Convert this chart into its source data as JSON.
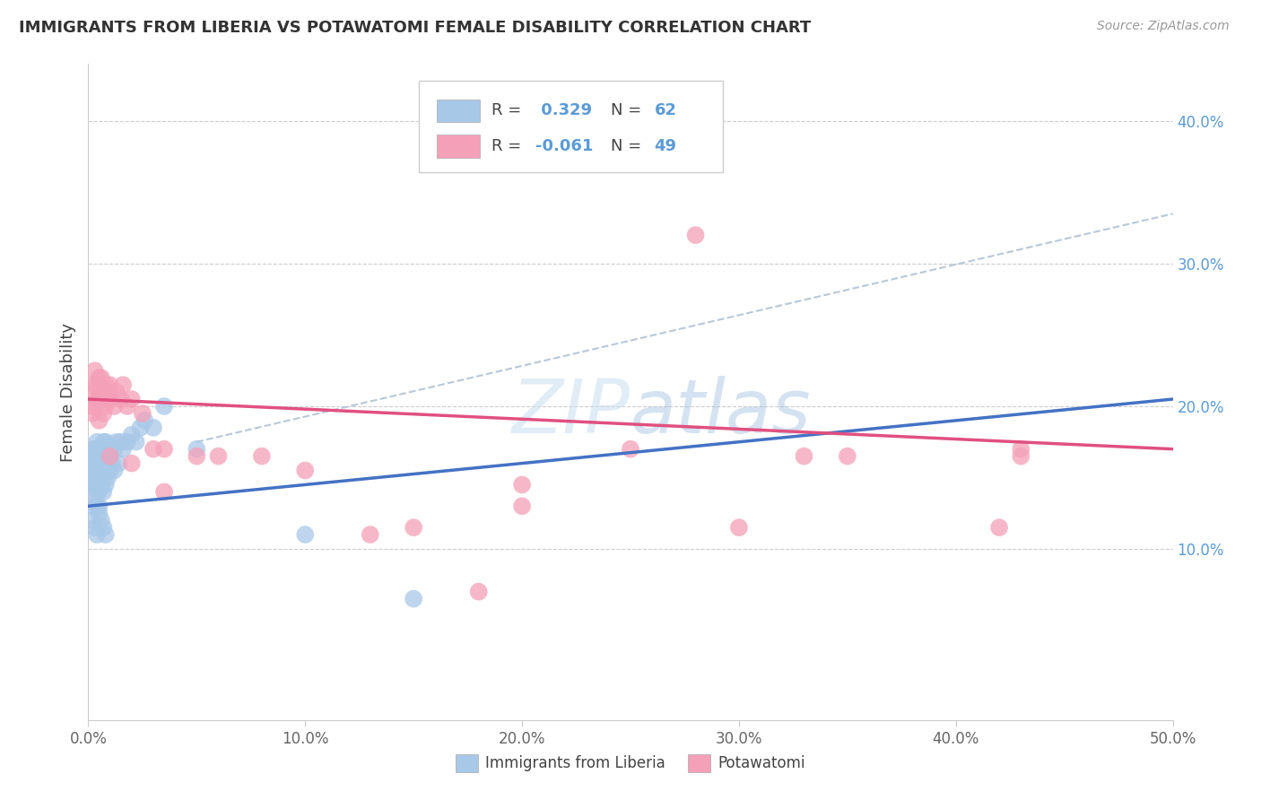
{
  "title": "IMMIGRANTS FROM LIBERIA VS POTAWATOMI FEMALE DISABILITY CORRELATION CHART",
  "source": "Source: ZipAtlas.com",
  "ylabel": "Female Disability",
  "xlim": [
    0.0,
    0.5
  ],
  "ylim": [
    -0.02,
    0.44
  ],
  "yticks": [
    0.1,
    0.2,
    0.3,
    0.4
  ],
  "ytick_labels": [
    "10.0%",
    "20.0%",
    "30.0%",
    "40.0%"
  ],
  "xticks": [
    0.0,
    0.1,
    0.2,
    0.3,
    0.4,
    0.5
  ],
  "xtick_labels": [
    "0.0%",
    "10.0%",
    "20.0%",
    "30.0%",
    "40.0%",
    "50.0%"
  ],
  "blue_R": 0.329,
  "blue_N": 62,
  "pink_R": -0.061,
  "pink_N": 49,
  "blue_color": "#a8c8e8",
  "pink_color": "#f4a0b8",
  "blue_line_color": "#4472c4",
  "pink_line_color": "#e05080",
  "trend_line_color": "#b8c8d8",
  "blue_points_x": [
    0.001,
    0.001,
    0.001,
    0.002,
    0.002,
    0.002,
    0.002,
    0.002,
    0.003,
    0.003,
    0.003,
    0.003,
    0.003,
    0.003,
    0.004,
    0.004,
    0.004,
    0.004,
    0.004,
    0.004,
    0.005,
    0.005,
    0.005,
    0.005,
    0.005,
    0.006,
    0.006,
    0.006,
    0.007,
    0.007,
    0.007,
    0.008,
    0.008,
    0.008,
    0.009,
    0.009,
    0.01,
    0.01,
    0.011,
    0.012,
    0.012,
    0.013,
    0.014,
    0.015,
    0.016,
    0.018,
    0.02,
    0.022,
    0.024,
    0.026,
    0.03,
    0.035,
    0.002,
    0.003,
    0.004,
    0.005,
    0.006,
    0.007,
    0.008,
    0.05,
    0.1,
    0.15
  ],
  "blue_points_y": [
    0.145,
    0.155,
    0.16,
    0.13,
    0.15,
    0.155,
    0.165,
    0.17,
    0.135,
    0.145,
    0.15,
    0.155,
    0.16,
    0.17,
    0.13,
    0.14,
    0.145,
    0.155,
    0.165,
    0.175,
    0.13,
    0.14,
    0.15,
    0.16,
    0.17,
    0.145,
    0.155,
    0.165,
    0.14,
    0.155,
    0.175,
    0.145,
    0.16,
    0.175,
    0.15,
    0.165,
    0.155,
    0.17,
    0.16,
    0.155,
    0.17,
    0.175,
    0.16,
    0.175,
    0.17,
    0.175,
    0.18,
    0.175,
    0.185,
    0.19,
    0.185,
    0.2,
    0.12,
    0.115,
    0.11,
    0.125,
    0.12,
    0.115,
    0.11,
    0.17,
    0.11,
    0.065
  ],
  "pink_points_x": [
    0.001,
    0.002,
    0.002,
    0.003,
    0.003,
    0.003,
    0.004,
    0.004,
    0.005,
    0.005,
    0.005,
    0.006,
    0.006,
    0.007,
    0.007,
    0.008,
    0.008,
    0.009,
    0.01,
    0.01,
    0.012,
    0.013,
    0.015,
    0.016,
    0.018,
    0.02,
    0.025,
    0.03,
    0.035,
    0.05,
    0.06,
    0.08,
    0.1,
    0.13,
    0.15,
    0.2,
    0.2,
    0.25,
    0.28,
    0.3,
    0.33,
    0.35,
    0.42,
    0.43,
    0.01,
    0.02,
    0.035,
    0.18,
    0.43
  ],
  "pink_points_y": [
    0.2,
    0.195,
    0.215,
    0.2,
    0.21,
    0.225,
    0.205,
    0.215,
    0.19,
    0.205,
    0.22,
    0.205,
    0.22,
    0.195,
    0.21,
    0.2,
    0.215,
    0.21,
    0.205,
    0.215,
    0.2,
    0.21,
    0.205,
    0.215,
    0.2,
    0.205,
    0.195,
    0.17,
    0.17,
    0.165,
    0.165,
    0.165,
    0.155,
    0.11,
    0.115,
    0.145,
    0.13,
    0.17,
    0.32,
    0.115,
    0.165,
    0.165,
    0.115,
    0.165,
    0.165,
    0.16,
    0.14,
    0.07,
    0.17
  ],
  "blue_line_x0": 0.0,
  "blue_line_x1": 0.5,
  "blue_line_y0": 0.13,
  "blue_line_y1": 0.205,
  "pink_line_x0": 0.0,
  "pink_line_x1": 0.5,
  "pink_line_y0": 0.205,
  "pink_line_y1": 0.17,
  "gray_line_x0": 0.05,
  "gray_line_x1": 0.5,
  "gray_line_y0": 0.175,
  "gray_line_y1": 0.335
}
